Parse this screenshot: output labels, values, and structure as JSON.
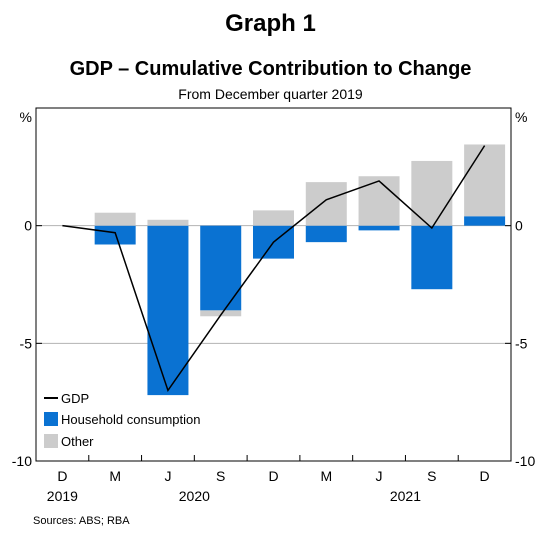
{
  "graph_label": "Graph 1",
  "source": "Sources: ABS; RBA",
  "colors": {
    "household": "#0a72d2",
    "other": "#cccccc",
    "gdp": "#000000",
    "grid": "#b3b3b3"
  },
  "chart_data": {
    "type": "bar",
    "title": "GDP – Cumulative Contribution to Change",
    "subtitle": "From December quarter 2019",
    "ylabel_left": "%",
    "ylabel_right": "%",
    "ylim": [
      -10,
      5
    ],
    "yticks": [
      0,
      -5,
      -10
    ],
    "ytick_labels": [
      "0",
      "-5",
      "-10"
    ],
    "stacked": true,
    "grid": true,
    "legend_position": "bottom-left",
    "categories": [
      "D",
      "M",
      "J",
      "S",
      "D",
      "M",
      "J",
      "S",
      "D"
    ],
    "year_labels": [
      {
        "index": 0,
        "label": "2019"
      },
      {
        "index": 2.5,
        "label": "2020"
      },
      {
        "index": 6.5,
        "label": "2021"
      }
    ],
    "series": [
      {
        "name": "GDP",
        "kind": "line",
        "values": [
          0,
          -0.3,
          -7.0,
          -3.8,
          -0.7,
          1.1,
          1.9,
          -0.1,
          3.4
        ]
      },
      {
        "name": "Household consumption",
        "kind": "bar",
        "values": [
          0,
          -0.8,
          -7.2,
          -3.6,
          -1.4,
          -0.7,
          -0.2,
          -2.7,
          0.4
        ]
      },
      {
        "name": "Other",
        "kind": "bar",
        "values": [
          0,
          0.55,
          0.25,
          -0.25,
          0.65,
          1.85,
          2.1,
          2.75,
          3.05
        ]
      }
    ]
  }
}
